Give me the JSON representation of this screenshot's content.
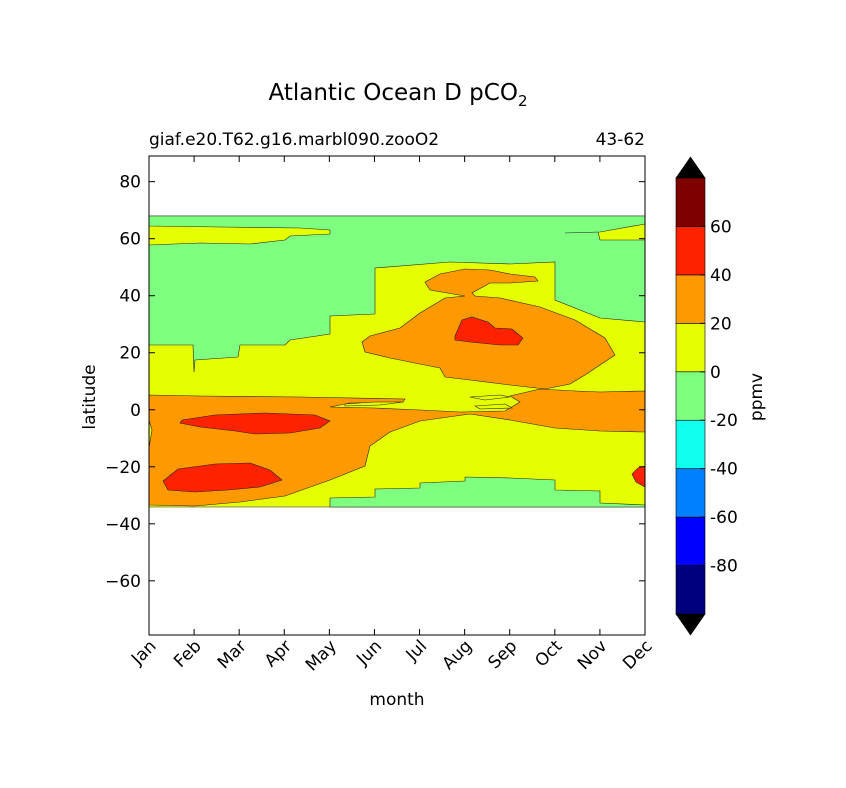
{
  "chart_data": {
    "type": "heatmap",
    "title_main": "Atlantic Ocean D pCO",
    "title_sub": "2",
    "subtitle_left": "giaf.e20.T62.g16.marbl090.zooO2",
    "subtitle_right": "43-62",
    "xlabel": "month",
    "ylabel": "latitude",
    "x_tick_labels": [
      "Jan",
      "Feb",
      "Mar",
      "Apr",
      "May",
      "Jun",
      "Jul",
      "Aug",
      "Sep",
      "Oct",
      "Nov",
      "Dec"
    ],
    "y_ticks": [
      80,
      60,
      40,
      20,
      0,
      -20,
      -40,
      -60
    ],
    "y_tick_labels": [
      "80",
      "60",
      "40",
      "20",
      "0",
      "−20",
      "−40",
      "−60"
    ],
    "ylim": [
      -79,
      89
    ],
    "xlim": [
      1,
      12
    ],
    "colorbar": {
      "label": "ppmv",
      "levels": [
        -100,
        -80,
        -60,
        -40,
        -20,
        0,
        20,
        40,
        60,
        80
      ],
      "tick_labels": [
        "60",
        "40",
        "20",
        "0",
        "-20",
        "-40",
        "-60",
        "-80"
      ],
      "tick_values": [
        60,
        40,
        20,
        0,
        -20,
        -40,
        -60,
        -80
      ],
      "colors": [
        "#00007f",
        "#0000ff",
        "#007fff",
        "#11ffee",
        "#7fff7f",
        "#e6ff00",
        "#ff9900",
        "#ff2200",
        "#7f0000"
      ],
      "extend_colors": {
        "under": "#000000",
        "over": "#000000"
      }
    },
    "regions": [
      {
        "name": "data-extent",
        "value_band": "0 to 20",
        "color": "#e6ff00",
        "lat_range": [
          -34,
          68
        ],
        "month_range": [
          1,
          12
        ]
      },
      {
        "name": "north-green",
        "value_band": "-20 to 0",
        "color": "#7fff7f"
      },
      {
        "name": "south-green",
        "value_band": "-20 to 0",
        "color": "#7fff7f"
      },
      {
        "name": "equatorial-orange",
        "value_band": "20 to 40",
        "color": "#ff9900"
      },
      {
        "name": "midlat-orange",
        "value_band": "20 to 40",
        "color": "#ff9900"
      },
      {
        "name": "red-patches",
        "value_band": "40 to 60",
        "color": "#ff2200"
      }
    ]
  }
}
